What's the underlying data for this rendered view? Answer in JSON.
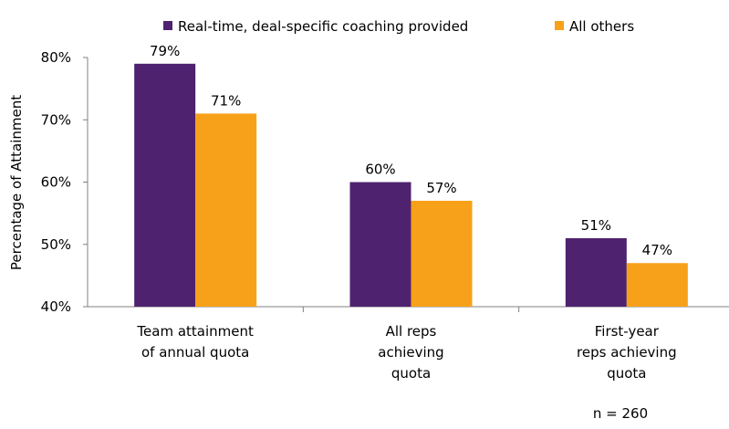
{
  "chart_data": {
    "type": "bar",
    "categories": [
      [
        "Team attainment",
        "of annual quota"
      ],
      [
        "All reps",
        "achieving",
        "quota"
      ],
      [
        "First-year",
        "reps achieving",
        "quota"
      ]
    ],
    "series": [
      {
        "name": "Real-time, deal-specific coaching provided",
        "values": [
          79,
          60,
          51
        ],
        "labels": [
          "79%",
          "60%",
          "51%"
        ],
        "color": "#4f2270"
      },
      {
        "name": "All others",
        "values": [
          71,
          57,
          47
        ],
        "labels": [
          "71%",
          "57%",
          "47%"
        ],
        "color": "#f7a11a"
      }
    ],
    "ylabel": "Percentage of Attainment",
    "ylim": [
      40,
      80
    ],
    "yticks": [
      "40%",
      "50%",
      "60%",
      "70%",
      "80%"
    ],
    "ytick_values": [
      40,
      50,
      60,
      70,
      80
    ],
    "grid": false,
    "legend": "top",
    "annotation": "n = 260"
  }
}
